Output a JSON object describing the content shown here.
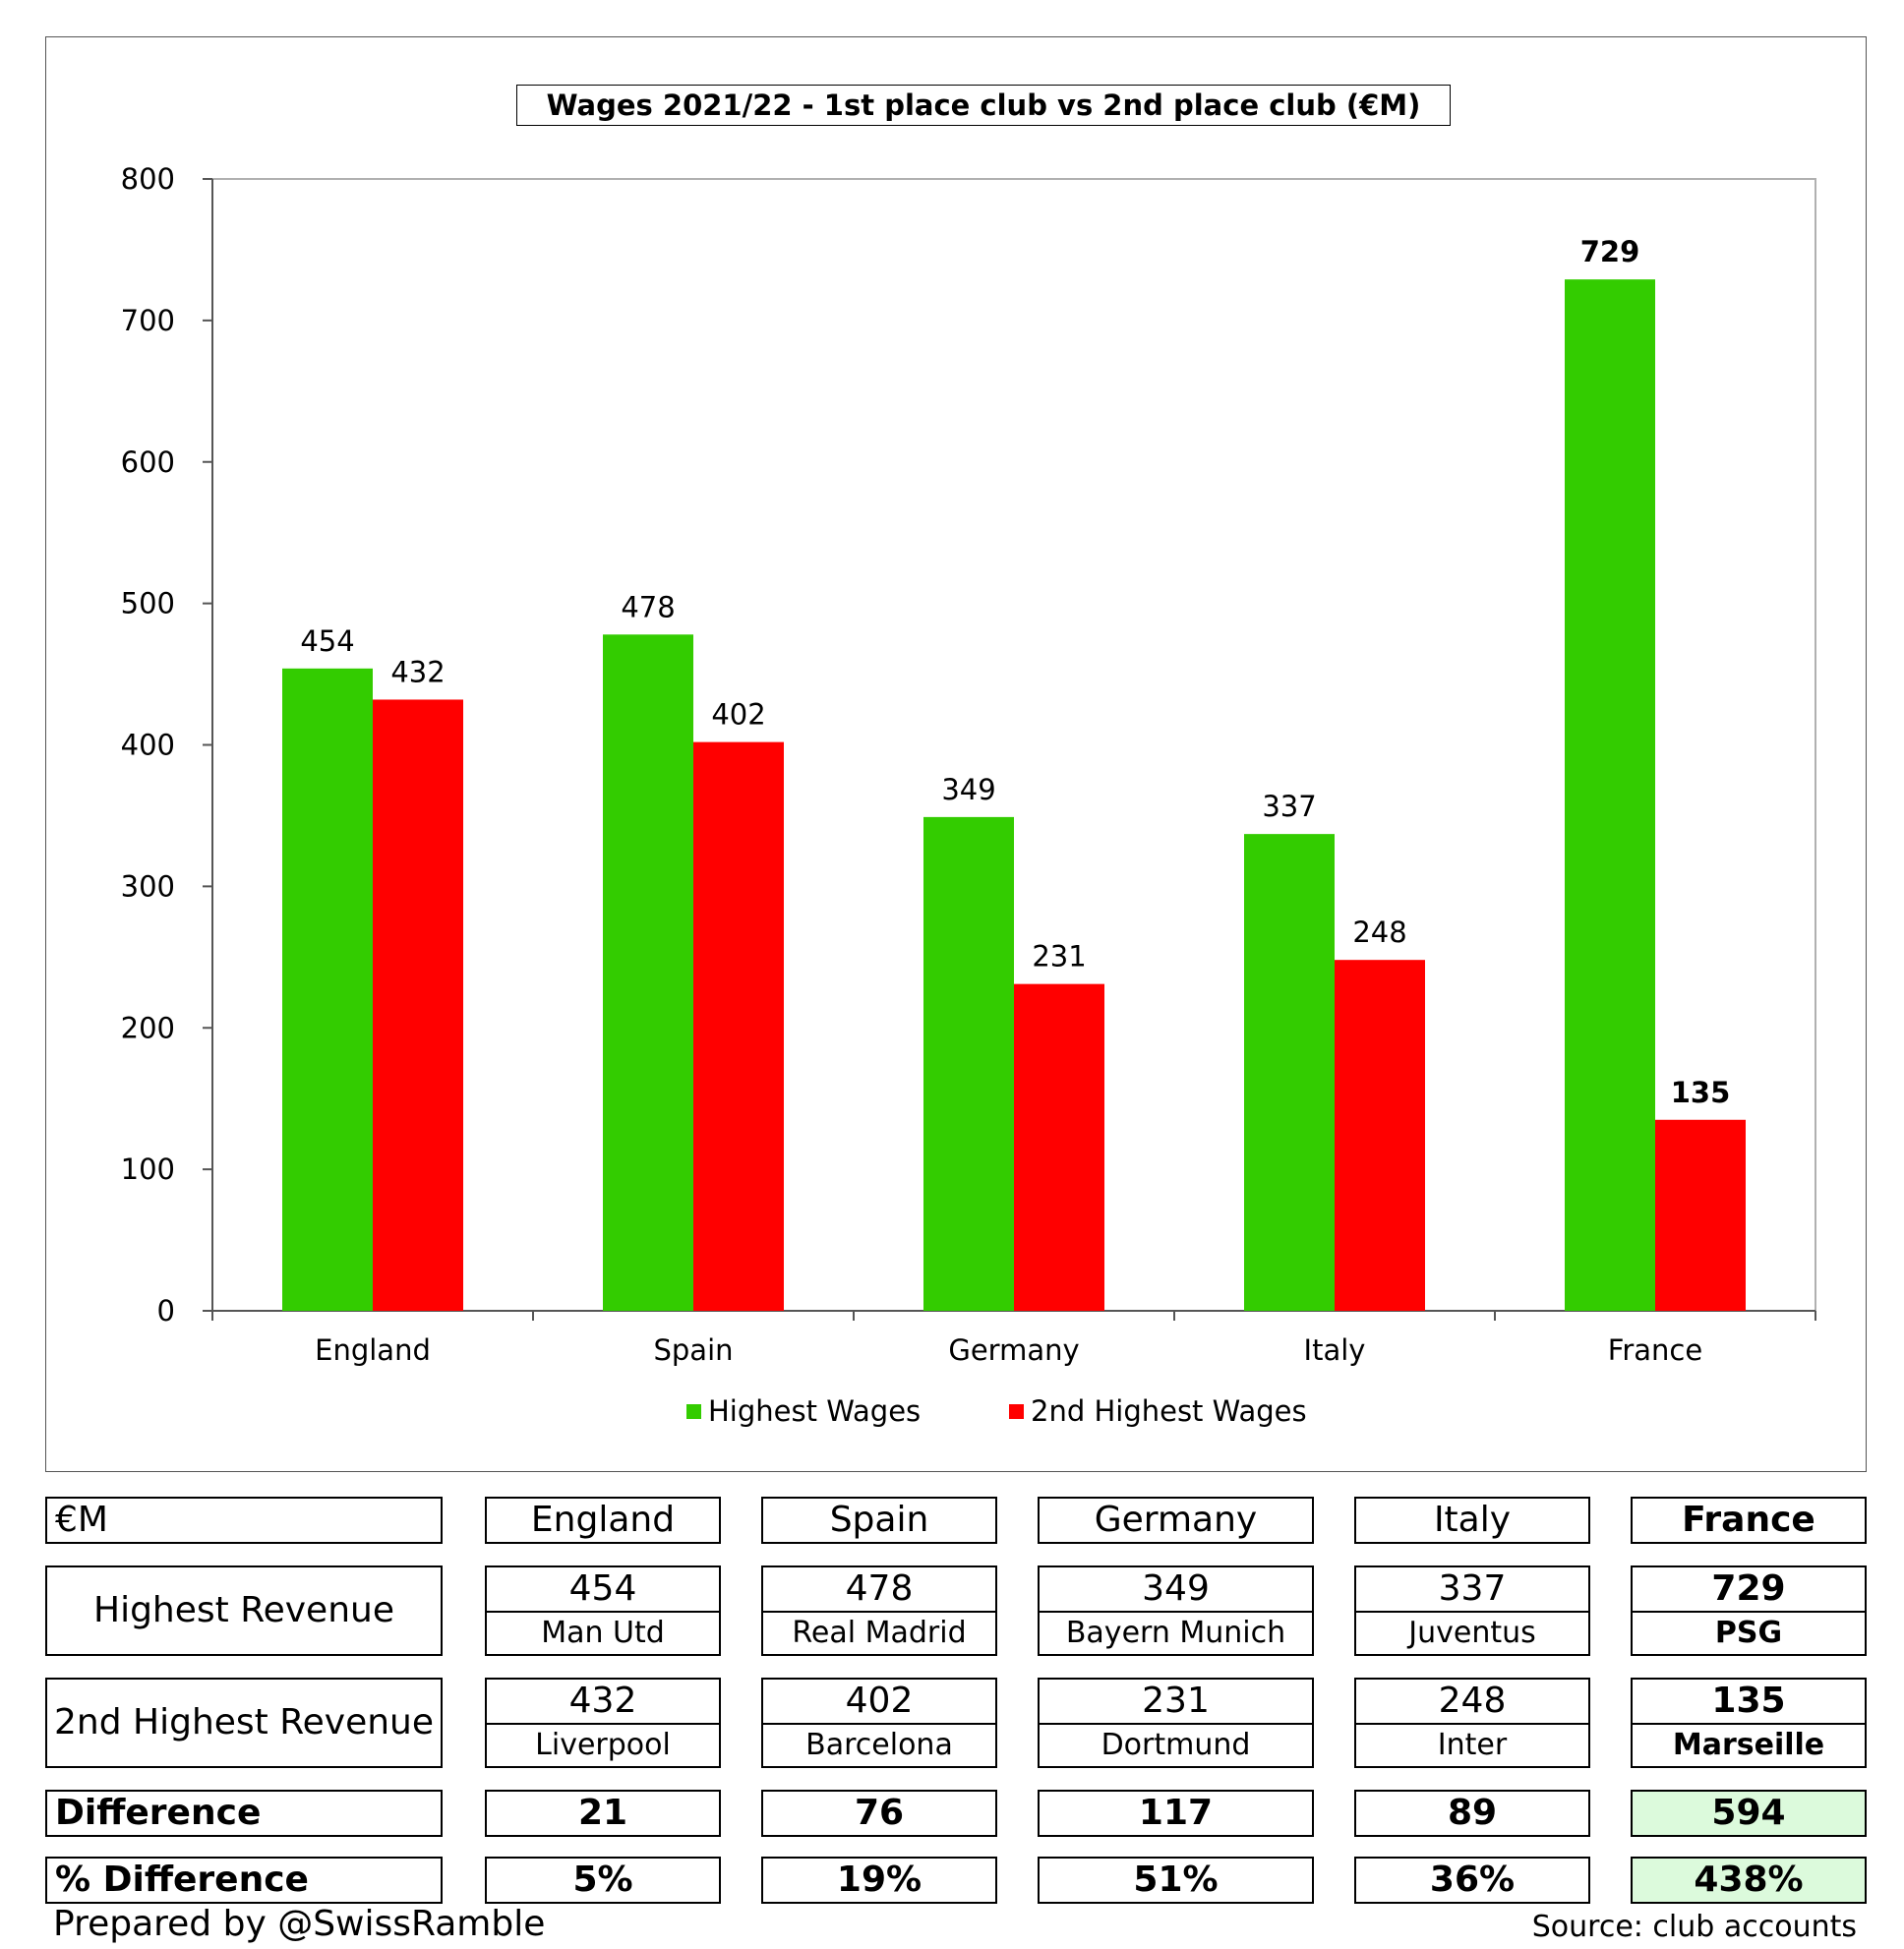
{
  "chart_data": {
    "type": "bar",
    "title": "Wages 2021/22 - 1st place club vs 2nd place club (€M)",
    "categories": [
      "England",
      "Spain",
      "Germany",
      "Italy",
      "France"
    ],
    "series": [
      {
        "name": "Highest Wages",
        "values": [
          454,
          478,
          349,
          337,
          729
        ],
        "color": "#33cc00"
      },
      {
        "name": "2nd Highest Wages",
        "values": [
          432,
          402,
          231,
          248,
          135
        ],
        "color": "#ff0000"
      }
    ],
    "bold_category": "France",
    "yticks": [
      "0",
      "100",
      "200",
      "300",
      "400",
      "500",
      "600",
      "700",
      "800"
    ],
    "ylim": [
      0,
      800
    ],
    "legend": "bottom",
    "grid": false
  },
  "table": {
    "corner": "€M",
    "columns": [
      "England",
      "Spain",
      "Germany",
      "Italy",
      "France"
    ],
    "rows": [
      {
        "label": "Highest Revenue",
        "values": [
          "454",
          "478",
          "349",
          "337",
          "729"
        ],
        "clubs": [
          "Man Utd",
          "Real Madrid",
          "Bayern Munich",
          "Juventus",
          "PSG"
        ]
      },
      {
        "label": "2nd Highest Revenue",
        "values": [
          "432",
          "402",
          "231",
          "248",
          "135"
        ],
        "clubs": [
          "Liverpool",
          "Barcelona",
          "Dortmund",
          "Inter",
          "Marseille"
        ]
      }
    ],
    "difference_label": "Difference",
    "difference": [
      "21",
      "76",
      "117",
      "89",
      "594"
    ],
    "pct_label": "% Difference",
    "pct": [
      "5%",
      "19%",
      "51%",
      "36%",
      "438%"
    ],
    "highlight_color": "#dcfadc"
  },
  "footer": {
    "prepared_by": "Prepared by @SwissRamble",
    "source": "Source: club accounts"
  }
}
